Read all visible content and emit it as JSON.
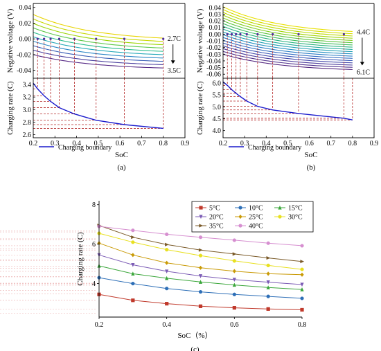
{
  "chart_data": [
    {
      "id": "a-top",
      "type": "line",
      "title": "",
      "xlabel": "",
      "ylabel": "Negative voltage (V)",
      "xlim": [
        0.2,
        0.9
      ],
      "ylim": [
        -0.05,
        0.045
      ],
      "yticks": [
        "0.04",
        "0.02",
        "0.00",
        "-0.02",
        "-0.04"
      ],
      "ytick_values": [
        0.04,
        0.02,
        0.0,
        -0.02,
        -0.04
      ],
      "annotations": {
        "top_label": "2.7C",
        "bottom_label": "3.5C"
      },
      "curve_count": 10,
      "curve_start_range": [
        0.031,
        -0.02
      ],
      "curve_end_range": [
        0.001,
        -0.037
      ],
      "crossing_x": [
        0.22,
        0.25,
        0.28,
        0.32,
        0.39,
        0.49,
        0.62,
        0.8
      ],
      "colors": [
        "#e8d400",
        "#c8d800",
        "#9ad400",
        "#5cc84a",
        "#2ebd8f",
        "#22a8b8",
        "#2a86c6",
        "#3a5fb6",
        "#4a3f9e",
        "#572a86"
      ]
    },
    {
      "id": "a-bottom",
      "type": "line",
      "xlabel": "SoC",
      "ylabel": "Charging rate (C)",
      "xlim": [
        0.2,
        0.9
      ],
      "ylim": [
        2.55,
        3.5
      ],
      "xticks": [
        "0.2",
        "0.3",
        "0.4",
        "0.5",
        "0.6",
        "0.7",
        "0.8",
        "0.9"
      ],
      "xtick_values": [
        0.2,
        0.3,
        0.4,
        0.5,
        0.6,
        0.7,
        0.8,
        0.9
      ],
      "yticks": [
        "3.4",
        "3.2",
        "3.0",
        "2.8",
        "2.6"
      ],
      "ytick_values": [
        3.4,
        3.2,
        3.0,
        2.8,
        2.6
      ],
      "legend": "Charging boundary",
      "series": [
        {
          "name": "Charging boundary",
          "x": [
            0.2,
            0.22,
            0.25,
            0.28,
            0.32,
            0.39,
            0.49,
            0.62,
            0.8
          ],
          "values": [
            3.42,
            3.33,
            3.22,
            3.13,
            3.03,
            2.93,
            2.83,
            2.76,
            2.7
          ]
        }
      ],
      "panel_label": "(a)"
    },
    {
      "id": "b-top",
      "type": "line",
      "xlabel": "",
      "ylabel": "Negative voltage (V)",
      "xlim": [
        0.2,
        0.9
      ],
      "ylim": [
        -0.066,
        0.046
      ],
      "yticks": [
        "0.04",
        "0.03",
        "0.02",
        "0.01",
        "0.00",
        "-0.01",
        "-0.02",
        "-0.03",
        "-0.04",
        "-0.05",
        "-0.06"
      ],
      "ytick_values": [
        0.04,
        0.03,
        0.02,
        0.01,
        0.0,
        -0.01,
        -0.02,
        -0.03,
        -0.04,
        -0.05,
        -0.06
      ],
      "annotations": {
        "top_label": "4.4C",
        "bottom_label": "6.1C"
      },
      "curve_count": 18,
      "curve_start_range": [
        0.041,
        -0.03
      ],
      "curve_end_range": [
        0.004,
        -0.053
      ],
      "crossing_x": [
        0.22,
        0.24,
        0.26,
        0.28,
        0.31,
        0.36,
        0.43,
        0.55,
        0.76
      ],
      "colors": [
        "#e8e000",
        "#d4dc00",
        "#bcd800",
        "#a0d400",
        "#80cc20",
        "#5ec440",
        "#40bc60",
        "#2cb480",
        "#24ac9c",
        "#22a0b4",
        "#2690c2",
        "#2c7ec6",
        "#346cc2",
        "#3c5ab8",
        "#4448aa",
        "#4a3a9a",
        "#50308c",
        "#552880"
      ]
    },
    {
      "id": "b-bottom",
      "type": "line",
      "xlabel": "SoC",
      "ylabel": "Charging rate (C)",
      "xlim": [
        0.2,
        0.9
      ],
      "ylim": [
        3.7,
        6.2
      ],
      "xticks": [
        "0.2",
        "0.3",
        "0.4",
        "0.5",
        "0.6",
        "0.7",
        "0.8",
        "0.9"
      ],
      "xtick_values": [
        0.2,
        0.3,
        0.4,
        0.5,
        0.6,
        0.7,
        0.8,
        0.9
      ],
      "yticks": [
        "6.0",
        "5.5",
        "5.0",
        "4.5",
        "4.0"
      ],
      "ytick_values": [
        6.0,
        5.5,
        5.0,
        4.5,
        4.0
      ],
      "legend": "Charging boundary",
      "series": [
        {
          "name": "Charging boundary",
          "x": [
            0.2,
            0.22,
            0.24,
            0.26,
            0.28,
            0.31,
            0.36,
            0.43,
            0.55,
            0.76,
            0.8
          ],
          "values": [
            6.05,
            5.9,
            5.72,
            5.57,
            5.43,
            5.24,
            5.02,
            4.87,
            4.72,
            4.52,
            4.45
          ]
        }
      ],
      "panel_label": "(b)"
    },
    {
      "id": "c",
      "type": "line",
      "xlabel": "SoC（%）",
      "ylabel": "Charging rate (C)",
      "xlim": [
        0.2,
        0.8
      ],
      "ylim": [
        2.3,
        8.2
      ],
      "xticks": [
        "0.2",
        "0.4",
        "0.6",
        "0.8"
      ],
      "xtick_values": [
        0.2,
        0.4,
        0.6,
        0.8
      ],
      "yticks": [
        "8",
        "6",
        "4"
      ],
      "ytick_values": [
        8,
        6,
        4
      ],
      "x": [
        0.2,
        0.3,
        0.4,
        0.5,
        0.6,
        0.7,
        0.8
      ],
      "series": [
        {
          "name": "5°C",
          "color": "#c0392b",
          "marker": "square",
          "values": [
            3.45,
            3.15,
            2.98,
            2.85,
            2.77,
            2.71,
            2.67
          ]
        },
        {
          "name": "10°C",
          "color": "#2e6fb7",
          "marker": "circle",
          "values": [
            4.3,
            4.0,
            3.75,
            3.58,
            3.45,
            3.35,
            3.25
          ]
        },
        {
          "name": "15°C",
          "color": "#3aa63a",
          "marker": "triangle-up",
          "values": [
            4.9,
            4.5,
            4.27,
            4.08,
            3.93,
            3.8,
            3.7
          ]
        },
        {
          "name": "20°C",
          "color": "#7b5bb5",
          "marker": "triangle-down",
          "values": [
            5.45,
            4.95,
            4.62,
            4.38,
            4.2,
            4.07,
            3.95
          ]
        },
        {
          "name": "25°C",
          "color": "#c99a06",
          "marker": "diamond",
          "values": [
            6.05,
            5.45,
            5.05,
            4.8,
            4.63,
            4.5,
            4.45
          ]
        },
        {
          "name": "30°C",
          "color": "#e8e020",
          "marker": "circle",
          "values": [
            6.55,
            6.1,
            5.72,
            5.42,
            5.15,
            4.92,
            4.72
          ]
        },
        {
          "name": "35°C",
          "color": "#7a5a28",
          "marker": "triangle-right",
          "values": [
            6.95,
            6.35,
            5.98,
            5.7,
            5.5,
            5.3,
            5.12
          ]
        },
        {
          "name": "40°C",
          "color": "#d68fd0",
          "marker": "circle",
          "values": [
            6.9,
            6.7,
            6.5,
            6.35,
            6.2,
            6.05,
            5.92
          ]
        }
      ],
      "panel_label": "(c)"
    }
  ]
}
